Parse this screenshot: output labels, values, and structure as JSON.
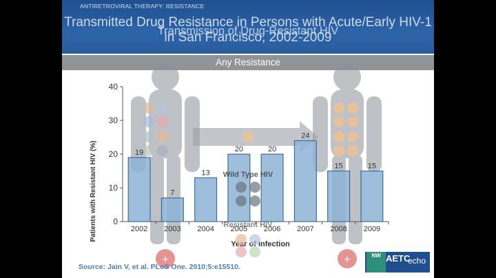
{
  "slide": {
    "section": "ANTIRETROVIRAL THERAPY: RESISTANCE",
    "title_a": "Transmitted Drug Resistance in Persons with Acute/Early HIV-1 in San Francisco, 2002-2009",
    "title_b": "Transmission of Drug-Resistant HIV",
    "subtitle_bar": "Any Resistance",
    "source": "Source: Jain V, et al. PLoS One. 2010;5:e15510.",
    "logo_nw": "NW",
    "logo_aetc": "AETC",
    "logo_echo": "echo",
    "overlay": {
      "wild_type_label": "Wild Type HIV",
      "resistant_label": "Resistant HIV",
      "plus_left": "+",
      "plus_right": "+"
    }
  },
  "chart_data": {
    "type": "bar",
    "categories": [
      "2002",
      "2003",
      "2004",
      "2005",
      "2006",
      "2007",
      "2008",
      "2009"
    ],
    "values": [
      19,
      7,
      13,
      20,
      20,
      24,
      15,
      15
    ],
    "title": "Any Resistance",
    "xlabel": "Year of Infection",
    "ylabel": "Patients with Resistant HIV (%)",
    "ylim": [
      0,
      40
    ],
    "yticks": [
      0,
      10,
      20,
      30,
      40
    ],
    "grid": false,
    "bar_color": "#8db3d6",
    "bar_edge": "#3d6f9e"
  }
}
